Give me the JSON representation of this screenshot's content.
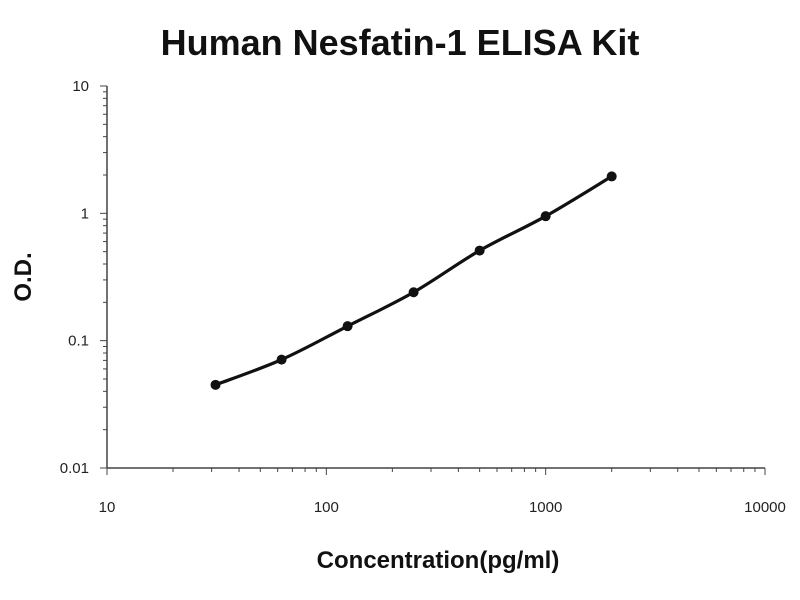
{
  "chart_data": {
    "type": "line",
    "title": "Human Nesfatin-1 ELISA Kit",
    "xlabel": "Concentration(pg/ml)",
    "ylabel": "O.D.",
    "x_scale": "log",
    "y_scale": "log",
    "xlim": [
      10,
      10000
    ],
    "ylim": [
      0.01,
      10
    ],
    "x_ticks": [
      10,
      100,
      1000,
      10000
    ],
    "x_tick_labels": [
      "10",
      "100",
      "1000",
      "10000"
    ],
    "y_ticks": [
      0.01,
      0.1,
      1,
      10
    ],
    "y_tick_labels": [
      "0.01",
      "0.1",
      "1",
      "10"
    ],
    "grid": false,
    "series": [
      {
        "x": [
          31.25,
          62.5,
          125,
          250,
          500,
          1000,
          2000
        ],
        "y": [
          0.045,
          0.071,
          0.13,
          0.24,
          0.51,
          0.95,
          1.95
        ]
      }
    ],
    "colors": {
      "line": "#111111",
      "axis": "#444444"
    }
  }
}
